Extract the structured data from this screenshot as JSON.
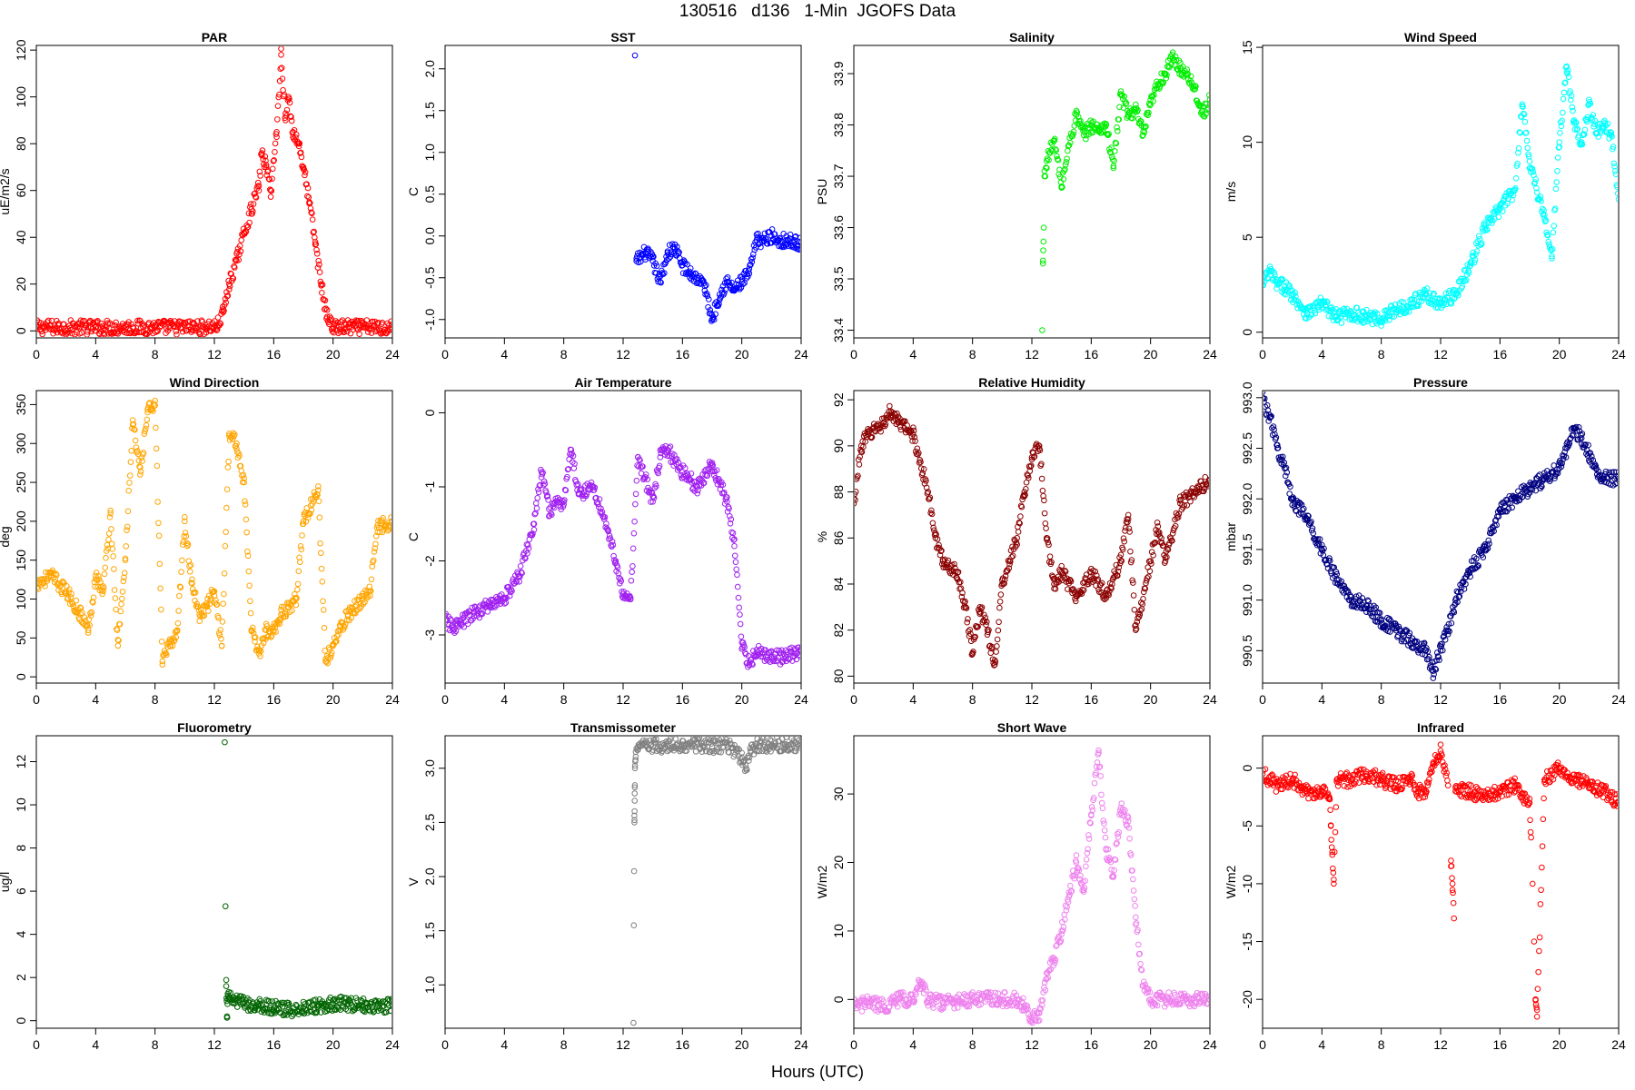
{
  "figure": {
    "title": "130516   d136   1-Min  JGOFS Data",
    "xlabel": "Hours (UTC)"
  },
  "chart_data": [
    {
      "type": "scatter",
      "title": "PAR",
      "ylabel": "uE/m2/s",
      "color": "#ff0000",
      "xlim": [
        0,
        24
      ],
      "ylim": [
        -3,
        122
      ],
      "xticks": [
        0,
        4,
        8,
        12,
        16,
        20,
        24
      ],
      "yticks": [
        0,
        20,
        40,
        60,
        80,
        100,
        120
      ],
      "x": [
        0,
        4,
        8,
        11.5,
        12.2,
        12.6,
        13.0,
        13.5,
        14.0,
        14.5,
        15.0,
        15.2,
        15.5,
        15.8,
        16.2,
        16.5,
        16.8,
        17.0,
        17.3,
        17.7,
        18.0,
        18.4,
        18.8,
        19.2,
        19.6,
        20.0,
        22,
        24
      ],
      "y": [
        1.5,
        1.5,
        1.5,
        1.5,
        2,
        8,
        20,
        30,
        42,
        52,
        62,
        76,
        70,
        60,
        85,
        118,
        90,
        100,
        85,
        80,
        70,
        55,
        38,
        20,
        6,
        1.5,
        1.5,
        1.5
      ]
    },
    {
      "type": "scatter",
      "title": "SST",
      "ylabel": "C",
      "color": "#0000ff",
      "xlim": [
        0,
        24
      ],
      "ylim": [
        -1.22,
        2.28
      ],
      "xticks": [
        0,
        4,
        8,
        12,
        16,
        20,
        24
      ],
      "yticks": [
        -1.0,
        -0.5,
        0.0,
        0.5,
        1.0,
        1.5,
        2.0
      ],
      "x": [
        12.8,
        12.9,
        13.5,
        14.0,
        14.5,
        15.0,
        15.5,
        16.0,
        16.5,
        17.0,
        17.5,
        18.0,
        18.5,
        19.0,
        19.5,
        20.0,
        20.5,
        21.0,
        21.5,
        22.0,
        22.5,
        23.0,
        23.5,
        24.0
      ],
      "y": [
        2.16,
        -0.3,
        -0.2,
        -0.3,
        -0.55,
        -0.2,
        -0.15,
        -0.35,
        -0.45,
        -0.5,
        -0.6,
        -1.0,
        -0.7,
        -0.55,
        -0.65,
        -0.55,
        -0.45,
        -0.05,
        -0.05,
        0.0,
        -0.05,
        -0.05,
        -0.08,
        -0.08
      ]
    },
    {
      "type": "scatter",
      "title": "Salinity",
      "ylabel": "PSU",
      "color": "#00ee00",
      "xlim": [
        0,
        24
      ],
      "ylim": [
        33.385,
        33.955
      ],
      "xticks": [
        0,
        4,
        8,
        12,
        16,
        20,
        24
      ],
      "yticks": [
        33.4,
        33.5,
        33.6,
        33.7,
        33.8,
        33.9
      ],
      "x": [
        12.7,
        12.75,
        12.8,
        12.85,
        13.0,
        13.5,
        14.0,
        14.5,
        15.0,
        15.5,
        16.0,
        16.5,
        17.0,
        17.5,
        18.0,
        18.5,
        19.0,
        19.5,
        20.0,
        20.5,
        21.0,
        21.5,
        22.0,
        22.5,
        23.0,
        23.5,
        24.0
      ],
      "y": [
        33.4,
        33.53,
        33.6,
        33.7,
        33.73,
        33.77,
        33.68,
        33.76,
        33.82,
        33.78,
        33.8,
        33.79,
        33.8,
        33.72,
        33.86,
        33.82,
        33.83,
        33.78,
        33.84,
        33.88,
        33.9,
        33.93,
        33.91,
        33.9,
        33.87,
        33.82,
        33.85
      ]
    },
    {
      "type": "scatter",
      "title": "Wind Speed",
      "ylabel": "m/s",
      "color": "#00ffff",
      "xlim": [
        0,
        24
      ],
      "ylim": [
        -0.3,
        15.1
      ],
      "xticks": [
        0,
        4,
        8,
        12,
        16,
        20,
        24
      ],
      "yticks": [
        0,
        5,
        10,
        15
      ],
      "x": [
        0,
        0.5,
        1,
        1.5,
        2,
        3,
        4,
        5,
        6,
        7,
        8,
        9,
        10,
        11,
        12,
        13,
        14,
        15,
        16,
        17,
        17.5,
        18,
        19,
        19.5,
        20,
        20.5,
        21,
        21.5,
        22,
        22.5,
        23,
        23.5,
        24
      ],
      "y": [
        2.5,
        3.2,
        2.5,
        2.4,
        2.0,
        1.0,
        1.5,
        0.8,
        1.0,
        0.8,
        0.7,
        1.2,
        1.5,
        2.0,
        1.5,
        2.0,
        3.5,
        5.5,
        6.5,
        7.5,
        12.0,
        9.0,
        6.0,
        4.0,
        10.0,
        14.0,
        11.0,
        10.0,
        12.0,
        10.5,
        10.8,
        10.5,
        7.0
      ]
    },
    {
      "type": "scatter",
      "title": "Wind Direction",
      "ylabel": "deg",
      "color": "#ffa500",
      "xlim": [
        0,
        24
      ],
      "ylim": [
        -8,
        368
      ],
      "xticks": [
        0,
        4,
        8,
        12,
        16,
        20,
        24
      ],
      "yticks": [
        0,
        50,
        100,
        150,
        200,
        250,
        300,
        350
      ],
      "x": [
        0,
        1,
        2,
        3,
        3.5,
        4,
        4.5,
        5,
        5.5,
        6,
        6.5,
        7,
        7.5,
        8,
        8.5,
        9,
        9.5,
        10,
        10.5,
        11,
        11.5,
        12,
        12.5,
        13,
        13.5,
        14,
        14.5,
        15,
        15.5,
        16,
        16.5,
        17,
        17.5,
        18,
        18.5,
        19,
        19.5,
        20,
        20.5,
        21,
        21.5,
        22,
        22.5,
        23,
        23.5,
        24
      ],
      "y": [
        120,
        130,
        110,
        80,
        60,
        130,
        110,
        210,
        40,
        150,
        330,
        260,
        340,
        355,
        20,
        40,
        60,
        200,
        120,
        80,
        90,
        110,
        40,
        310,
        300,
        250,
        60,
        30,
        60,
        60,
        80,
        90,
        100,
        200,
        220,
        240,
        20,
        40,
        60,
        80,
        90,
        100,
        110,
        195,
        195,
        200
      ]
    },
    {
      "type": "scatter",
      "title": "Air Temperature",
      "ylabel": "C",
      "color": "#a020f0",
      "xlim": [
        0,
        24
      ],
      "ylim": [
        -3.65,
        0.3
      ],
      "xticks": [
        0,
        4,
        8,
        12,
        16,
        20,
        24
      ],
      "yticks": [
        -3,
        -2,
        -1,
        0
      ],
      "x": [
        0,
        0.5,
        1,
        2,
        3,
        4,
        5,
        6,
        6.5,
        7,
        8,
        8.5,
        9,
        10,
        11,
        11.5,
        12,
        12.5,
        13,
        14,
        14.5,
        15,
        16,
        17,
        18,
        19,
        19.5,
        20,
        20.5,
        21,
        22,
        23,
        24
      ],
      "y": [
        -2.8,
        -2.9,
        -2.85,
        -2.7,
        -2.6,
        -2.5,
        -2.2,
        -1.5,
        -0.8,
        -1.3,
        -1.2,
        -0.5,
        -1.1,
        -1.0,
        -1.6,
        -2.0,
        -2.5,
        -2.5,
        -0.6,
        -1.2,
        -0.6,
        -0.5,
        -0.8,
        -1.0,
        -0.7,
        -1.2,
        -1.8,
        -3.1,
        -3.4,
        -3.2,
        -3.3,
        -3.3,
        -3.2
      ]
    },
    {
      "type": "scatter",
      "title": "Relative Humidity",
      "ylabel": "%",
      "color": "#8b0000",
      "xlim": [
        0,
        24
      ],
      "ylim": [
        79.7,
        92.4
      ],
      "xticks": [
        0,
        4,
        8,
        12,
        16,
        20,
        24
      ],
      "yticks": [
        80,
        82,
        84,
        86,
        88,
        90,
        92
      ],
      "x": [
        0,
        0.5,
        1,
        2,
        2.5,
        3,
        4,
        5,
        5.5,
        6,
        7,
        7.5,
        8,
        8.5,
        9,
        9.5,
        10,
        10.5,
        11,
        11.5,
        12,
        12.5,
        13,
        13.5,
        14,
        15,
        16,
        17,
        18,
        18.5,
        19,
        20,
        20.5,
        21,
        22,
        23,
        24
      ],
      "y": [
        87.5,
        90,
        90.5,
        91,
        91.5,
        91,
        90.5,
        88,
        86,
        85,
        84.5,
        83,
        81,
        83,
        82,
        80.5,
        84,
        85,
        86,
        88,
        89.5,
        90,
        86,
        84,
        84.5,
        83.5,
        84.5,
        83.5,
        85,
        87,
        82,
        85,
        86.5,
        85,
        87.5,
        88,
        88.5
      ]
    },
    {
      "type": "scatter",
      "title": "Pressure",
      "ylabel": "mbar",
      "color": "#000080",
      "xlim": [
        0,
        24
      ],
      "ylim": [
        990.18,
        993.07
      ],
      "xticks": [
        0,
        4,
        8,
        12,
        16,
        20,
        24
      ],
      "yticks": [
        990.5,
        991.0,
        991.5,
        992.0,
        992.5,
        993.0
      ],
      "x": [
        0,
        0.5,
        1,
        1.5,
        2,
        3,
        4,
        5,
        6,
        7,
        8,
        9,
        10,
        11,
        11.5,
        12,
        12.5,
        13,
        14,
        15,
        16,
        17,
        18,
        19,
        20,
        20.5,
        21,
        21.5,
        22,
        22.5,
        23,
        24
      ],
      "y": [
        993.0,
        992.8,
        992.5,
        992.3,
        992.0,
        991.8,
        991.5,
        991.2,
        991.0,
        990.95,
        990.8,
        990.7,
        990.6,
        990.5,
        990.3,
        990.5,
        990.7,
        991.0,
        991.3,
        991.5,
        991.9,
        992.0,
        992.1,
        992.2,
        992.3,
        992.5,
        992.7,
        992.6,
        992.45,
        992.3,
        992.2,
        992.2
      ]
    },
    {
      "type": "scatter",
      "title": "Fluorometry",
      "ylabel": "ug/l",
      "color": "#006400",
      "xlim": [
        0,
        24
      ],
      "ylim": [
        -0.35,
        13.2
      ],
      "xticks": [
        0,
        4,
        8,
        12,
        16,
        20,
        24
      ],
      "yticks": [
        0,
        2,
        4,
        6,
        8,
        10,
        12
      ],
      "x": [
        12.7,
        12.75,
        12.8,
        12.85,
        12.9,
        13,
        14,
        15,
        16,
        17,
        18,
        19,
        20,
        21,
        22,
        23,
        24
      ],
      "y": [
        12.9,
        5.3,
        1.6,
        0.2,
        1.0,
        1.0,
        0.8,
        0.7,
        0.6,
        0.5,
        0.6,
        0.7,
        0.8,
        0.8,
        0.7,
        0.7,
        0.7
      ]
    },
    {
      "type": "scatter",
      "title": "Transmissometer",
      "ylabel": "V",
      "color": "#808080",
      "xlim": [
        0,
        24
      ],
      "ylim": [
        0.6,
        3.3
      ],
      "xticks": [
        0,
        4,
        8,
        12,
        16,
        20,
        24
      ],
      "yticks": [
        1.0,
        1.5,
        2.0,
        2.5,
        3.0
      ],
      "x": [
        12.7,
        12.72,
        12.74,
        12.76,
        12.78,
        12.8,
        12.85,
        13,
        14,
        15,
        16,
        17,
        18,
        19,
        20,
        20.3,
        20.6,
        21,
        22,
        23,
        24
      ],
      "y": [
        0.65,
        1.55,
        2.05,
        2.5,
        2.7,
        3.0,
        3.15,
        3.2,
        3.2,
        3.2,
        3.22,
        3.22,
        3.2,
        3.22,
        3.1,
        3.0,
        3.15,
        3.22,
        3.22,
        3.22,
        3.22
      ]
    },
    {
      "type": "scatter",
      "title": "Short Wave",
      "ylabel": "W/m2",
      "color": "#ee82ee",
      "xlim": [
        0,
        24
      ],
      "ylim": [
        -4.2,
        38.5
      ],
      "xticks": [
        0,
        4,
        8,
        12,
        16,
        20,
        24
      ],
      "yticks": [
        0,
        10,
        20,
        30
      ],
      "x": [
        0,
        1,
        2,
        3,
        4,
        4.5,
        5,
        6,
        7,
        8,
        9,
        10,
        11,
        11.5,
        12,
        12.5,
        13,
        13.5,
        14,
        14.5,
        15,
        15.5,
        16,
        16.5,
        17,
        17.5,
        18,
        18.5,
        19,
        19.5,
        20,
        22,
        24
      ],
      "y": [
        -1,
        -0.5,
        -1,
        0,
        0,
        2.5,
        0,
        -0.5,
        -0.3,
        0,
        0,
        0,
        0,
        -1,
        -3,
        -2,
        3,
        6,
        10,
        15,
        20,
        16,
        27,
        36,
        22,
        18,
        28,
        26,
        12,
        2,
        0,
        0,
        0
      ]
    },
    {
      "type": "scatter",
      "title": "Infrared",
      "ylabel": "W/m2",
      "color": "#ff0000",
      "xlim": [
        0,
        24
      ],
      "ylim": [
        -22.5,
        2.8
      ],
      "xticks": [
        0,
        4,
        8,
        12,
        16,
        20,
        24
      ],
      "yticks": [
        -20,
        -15,
        -10,
        -5,
        0
      ],
      "x": [
        0,
        1,
        2,
        3,
        4,
        4.5,
        4.6,
        4.7,
        4.8,
        5,
        6,
        7,
        8,
        9,
        10,
        10.5,
        11,
        11.5,
        12,
        12.5,
        12.7,
        12.8,
        12.9,
        13,
        14,
        15,
        16,
        17,
        17.5,
        18,
        18.1,
        18.2,
        18.3,
        18.4,
        18.5,
        19,
        20,
        21,
        22,
        23,
        24
      ],
      "y": [
        -0.5,
        -1.5,
        -1,
        -2,
        -2,
        -2.5,
        -5,
        -7.5,
        -10,
        -1,
        -1,
        -0.5,
        -1,
        -1.5,
        -1,
        -2,
        -2,
        0.5,
        1.5,
        -1.5,
        -8,
        -10,
        -13,
        -2,
        -2,
        -2.5,
        -2,
        -1.5,
        -2.5,
        -3,
        -6,
        -10,
        -15,
        -20,
        -21.5,
        -1,
        0,
        -1,
        -1.5,
        -2,
        -3
      ]
    }
  ]
}
